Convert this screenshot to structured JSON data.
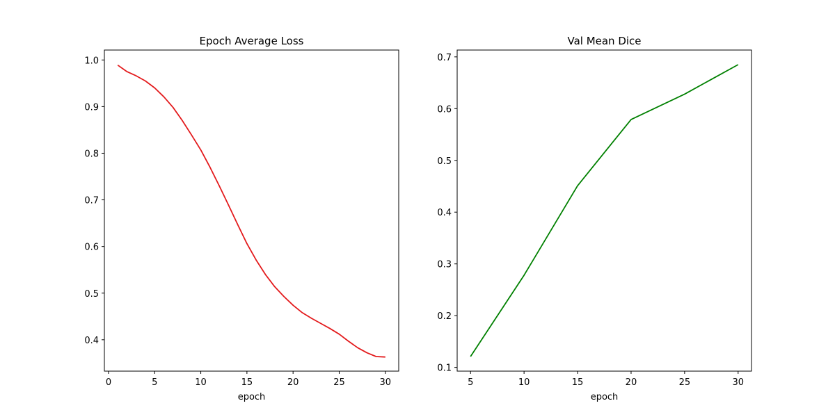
{
  "chart_data": [
    {
      "type": "line",
      "title": "Epoch Average Loss",
      "xlabel": "epoch",
      "ylabel": "",
      "xlim": [
        -0.45,
        31.45
      ],
      "ylim": [
        0.3327,
        1.0213
      ],
      "xticks": [
        0,
        5,
        10,
        15,
        20,
        25,
        30
      ],
      "yticks": [
        0.4,
        0.5,
        0.6,
        0.7,
        0.8,
        0.9,
        1.0
      ],
      "xtick_labels": [
        "0",
        "5",
        "10",
        "15",
        "20",
        "25",
        "30"
      ],
      "ytick_labels": [
        "0.4",
        "0.5",
        "0.6",
        "0.7",
        "0.8",
        "0.9",
        "1.0"
      ],
      "grid": false,
      "color": "#e31a1c",
      "series": [
        {
          "x": [
            1,
            2,
            3,
            4,
            5,
            6,
            7,
            8,
            9,
            10,
            11,
            12,
            13,
            14,
            15,
            16,
            17,
            18,
            19,
            20,
            21,
            22,
            23,
            24,
            25,
            26,
            27,
            28,
            29,
            30
          ],
          "y": [
            0.989,
            0.975,
            0.966,
            0.955,
            0.94,
            0.921,
            0.898,
            0.87,
            0.839,
            0.807,
            0.77,
            0.73,
            0.689,
            0.647,
            0.606,
            0.571,
            0.54,
            0.514,
            0.493,
            0.474,
            0.458,
            0.446,
            0.435,
            0.424,
            0.412,
            0.397,
            0.383,
            0.372,
            0.364,
            0.363
          ]
        }
      ]
    },
    {
      "type": "line",
      "title": "Val Mean Dice",
      "xlabel": "epoch",
      "ylabel": "",
      "xlim": [
        3.75,
        31.25
      ],
      "ylim": [
        0.0928,
        0.7132
      ],
      "xticks": [
        5,
        10,
        15,
        20,
        25,
        30
      ],
      "yticks": [
        0.1,
        0.2,
        0.3,
        0.4,
        0.5,
        0.6,
        0.7
      ],
      "xtick_labels": [
        "5",
        "10",
        "15",
        "20",
        "25",
        "30"
      ],
      "ytick_labels": [
        "0.1",
        "0.2",
        "0.3",
        "0.4",
        "0.5",
        "0.6",
        "0.7"
      ],
      "grid": false,
      "color": "#008000",
      "series": [
        {
          "x": [
            5,
            10,
            15,
            20,
            25,
            30
          ],
          "y": [
            0.121,
            0.278,
            0.451,
            0.579,
            0.628,
            0.685
          ]
        }
      ]
    }
  ]
}
